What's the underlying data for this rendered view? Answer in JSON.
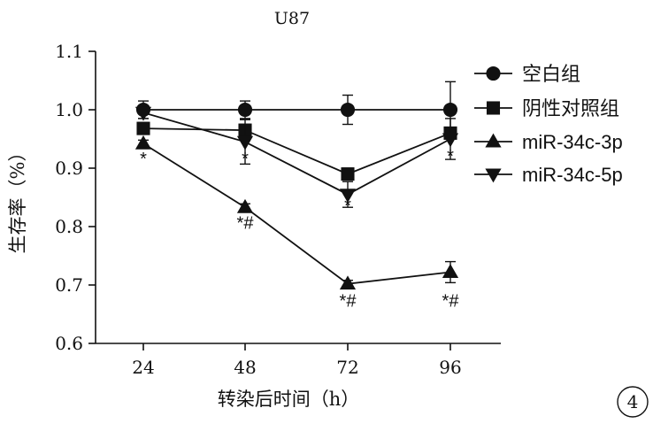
{
  "chart_data": {
    "type": "line",
    "title": "U87",
    "xlabel": "转染后时间（h）",
    "ylabel": "生存率（%）",
    "x": [
      24,
      48,
      72,
      96
    ],
    "x_tick_labels": [
      "24",
      "48",
      "72",
      "96"
    ],
    "ylim": [
      0.6,
      1.1
    ],
    "y_ticks": [
      0.6,
      0.7,
      0.8,
      0.9,
      1.0,
      1.1
    ],
    "y_tick_labels": [
      "0.6",
      "0.7",
      "0.8",
      "0.9",
      "1.0",
      "1.1"
    ],
    "grid": false,
    "legend_position": "top-right",
    "series": [
      {
        "name": "空白组",
        "marker": "circle",
        "values": [
          1.0,
          1.0,
          1.0,
          1.0
        ],
        "errors": [
          0.015,
          0.015,
          0.025,
          0.048
        ]
      },
      {
        "name": "阴性对照组",
        "marker": "square",
        "values": [
          0.968,
          0.965,
          0.89,
          0.96
        ],
        "errors": [
          0.01,
          0.01,
          0.01,
          0.01
        ]
      },
      {
        "name": "miR-34c-3p",
        "marker": "triangle-up",
        "values": [
          0.942,
          0.833,
          0.702,
          0.722
        ],
        "errors": [
          0.006,
          0.006,
          0.006,
          0.018
        ]
      },
      {
        "name": "miR-34c-5p",
        "marker": "triangle-down",
        "values": [
          0.995,
          0.945,
          0.855,
          0.95
        ],
        "errors": [
          0.01,
          0.038,
          0.022,
          0.035
        ]
      }
    ],
    "annotations": [
      {
        "x": 24,
        "y": 0.918,
        "text": "*"
      },
      {
        "x": 48,
        "y": 0.918,
        "text": "*"
      },
      {
        "x": 48,
        "y": 0.808,
        "text": "*#"
      },
      {
        "x": 72,
        "y": 0.838,
        "text": "*"
      },
      {
        "x": 72,
        "y": 0.675,
        "text": "*#"
      },
      {
        "x": 96,
        "y": 0.923,
        "text": "*"
      },
      {
        "x": 96,
        "y": 0.675,
        "text": "*#"
      }
    ]
  },
  "panel_label": "4"
}
